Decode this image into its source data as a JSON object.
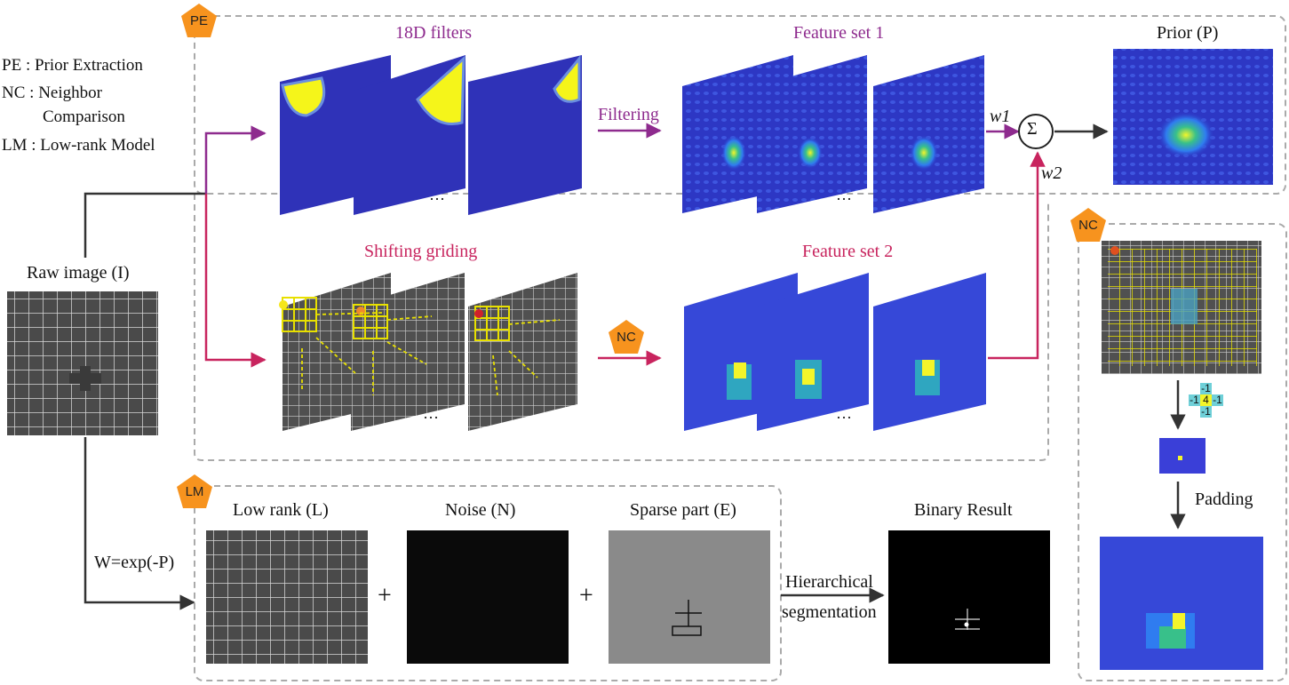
{
  "legend": [
    {
      "abbr": "PE",
      "sep": " : ",
      "text": "Prior Extraction"
    },
    {
      "abbr": "NC",
      "sep": " : ",
      "text": "Neighbor",
      "text2": "Comparison"
    },
    {
      "abbr": "LM",
      "sep": " : ",
      "text": "Low-rank Model"
    }
  ],
  "badges": {
    "pe": "PE",
    "nc_inline": "NC",
    "nc_panel": "NC",
    "lm": "LM"
  },
  "labels": {
    "raw_image": "Raw image (I)",
    "filters": "18D filters",
    "feature_set_1": "Feature set 1",
    "prior": "Prior (P)",
    "shifting_griding": "Shifting griding",
    "feature_set_2": "Feature set 2",
    "filtering": "Filtering",
    "w1": "w1",
    "w2": "w2",
    "sum_symbol": "Σ",
    "weight_formula": "W=exp(-P)",
    "low_rank": "Low rank (L)",
    "noise": "Noise (N)",
    "sparse": "Sparse part (E)",
    "binary_result": "Binary Result",
    "hierarchical_1": "Hierarchical",
    "hierarchical_2": "segmentation",
    "padding": "Padding",
    "plus": "+",
    "ellipsis": "···"
  },
  "stencil": {
    "top": "-1",
    "left": "-1",
    "center": "4",
    "right": "-1",
    "bottom": "-1"
  },
  "colors": {
    "purple": "#8e2b8e",
    "pink": "#c8245e",
    "badge": "#f7931e",
    "heat_low": "#3a3fd8",
    "heat_high": "#f3f52a",
    "grid_yellow": "#e8e000"
  }
}
